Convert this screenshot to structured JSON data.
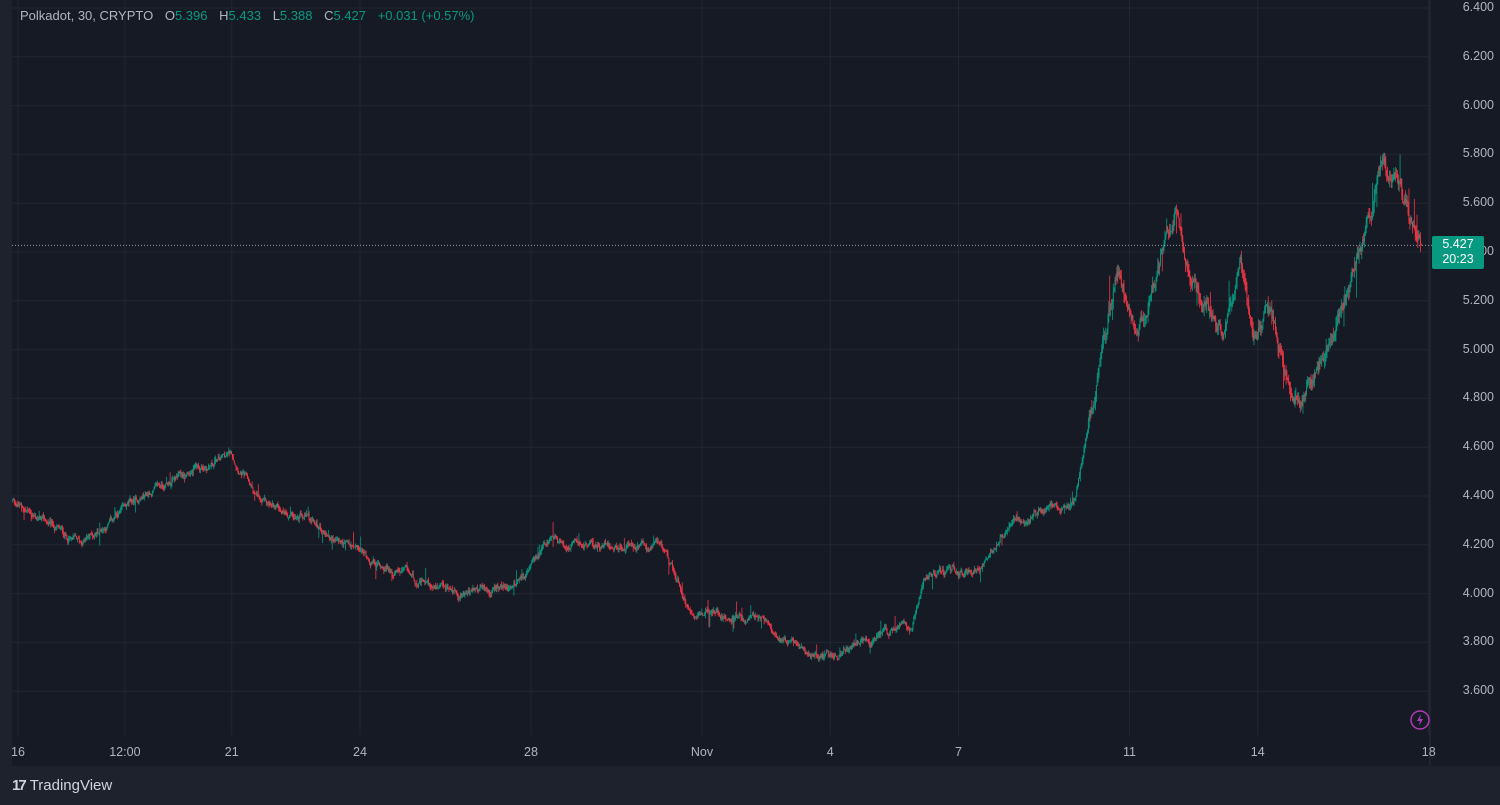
{
  "legend": {
    "symbol": "Polkadot, 30, CRYPTO",
    "open_label": "O",
    "open": "5.396",
    "high_label": "H",
    "high": "5.433",
    "low_label": "L",
    "low": "5.388",
    "close_label": "C",
    "close": "5.427",
    "change": "+0.031 (+0.57%)"
  },
  "last_price": {
    "price": "5.427",
    "countdown": "20:23"
  },
  "footer": {
    "brand": "TradingView"
  },
  "colors": {
    "up": "#089981",
    "down": "#f23645",
    "background": "#161a25",
    "grid": "#222631",
    "text": "#b2b5be",
    "bolt": "#b23ab5"
  },
  "chart_data": {
    "type": "candlestick",
    "title": "Polkadot, 30, CRYPTO",
    "interval_minutes": 30,
    "ylim": [
      3.45,
      6.43
    ],
    "y_ticks": [
      "6.400",
      "6.200",
      "6.000",
      "5.800",
      "5.600",
      "5.400",
      "5.200",
      "5.000",
      "4.800",
      "4.600",
      "4.400",
      "4.200",
      "4.000",
      "3.800",
      "3.600"
    ],
    "x_ticks": [
      {
        "label": "16",
        "day": 0
      },
      {
        "label": "12:00",
        "day": 2.5
      },
      {
        "label": "21",
        "day": 5
      },
      {
        "label": "24",
        "day": 8
      },
      {
        "label": "28",
        "day": 12
      },
      {
        "label": "Nov",
        "day": 16
      },
      {
        "label": "4",
        "day": 19
      },
      {
        "label": "7",
        "day": 22
      },
      {
        "label": "11",
        "day": 26
      },
      {
        "label": "14",
        "day": 29
      },
      {
        "label": "18",
        "day": 33
      }
    ],
    "x_unit": "days since Oct 16",
    "price_path": [
      [
        -0.15,
        4.38
      ],
      [
        1.45,
        4.2
      ],
      [
        3.1,
        4.42
      ],
      [
        5.0,
        4.57
      ],
      [
        5.7,
        4.36
      ],
      [
        6.4,
        4.34
      ],
      [
        7.8,
        4.18
      ],
      [
        9.9,
        4.0
      ],
      [
        11.5,
        4.02
      ],
      [
        12.45,
        4.2
      ],
      [
        13.6,
        4.2
      ],
      [
        15.1,
        4.18
      ],
      [
        15.7,
        3.95
      ],
      [
        17.6,
        3.87
      ],
      [
        18.6,
        3.73
      ],
      [
        19.9,
        3.79
      ],
      [
        20.9,
        3.87
      ],
      [
        21.2,
        4.08
      ],
      [
        22.5,
        4.1
      ],
      [
        23.3,
        4.32
      ],
      [
        24.7,
        4.36
      ],
      [
        25.3,
        4.95
      ],
      [
        25.7,
        5.33
      ],
      [
        26.2,
        5.08
      ],
      [
        27.1,
        5.57
      ],
      [
        27.4,
        5.33
      ],
      [
        28.2,
        5.04
      ],
      [
        28.6,
        5.39
      ],
      [
        28.9,
        5.04
      ],
      [
        29.2,
        5.16
      ],
      [
        30.0,
        4.79
      ],
      [
        30.6,
        5.0
      ],
      [
        31.5,
        5.45
      ],
      [
        31.9,
        5.74
      ],
      [
        32.3,
        5.67
      ],
      [
        32.84,
        5.43
      ]
    ],
    "last_close": 5.427
  }
}
